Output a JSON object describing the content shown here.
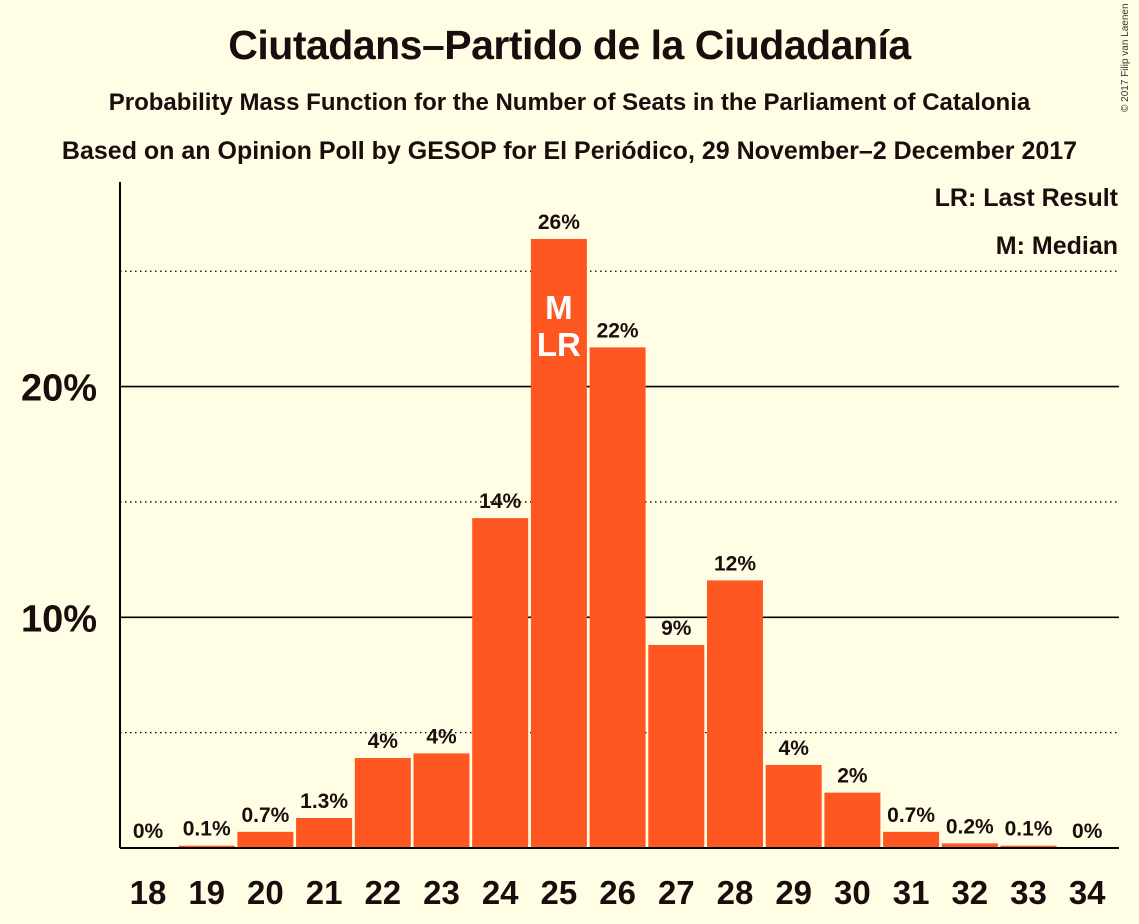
{
  "title": "Ciutadans–Partido de la Ciudadanía",
  "subtitle": "Probability Mass Function for the Number of Seats in the Parliament of Catalonia",
  "subtitle2": "Based on an Opinion Poll by GESOP for El Periódico, 29 November–2 December 2017",
  "copyright": "© 2017 Filip van Laenen",
  "legend": {
    "lr": "LR: Last Result",
    "m": "M: Median"
  },
  "colors": {
    "bar": "#FF5722",
    "background": "#FFFDE3",
    "text": "#1a0d0d"
  },
  "chart_data": {
    "type": "bar",
    "categories": [
      "18",
      "19",
      "20",
      "21",
      "22",
      "23",
      "24",
      "25",
      "26",
      "27",
      "28",
      "29",
      "30",
      "31",
      "32",
      "33",
      "34"
    ],
    "values": [
      0,
      0.1,
      0.7,
      1.3,
      3.9,
      4.1,
      14.3,
      26.4,
      21.7,
      8.8,
      11.6,
      3.6,
      2.4,
      0.7,
      0.2,
      0.1,
      0
    ],
    "data_labels": [
      "0%",
      "0.1%",
      "0.7%",
      "1.3%",
      "4%",
      "4%",
      "14%",
      "26%",
      "22%",
      "9%",
      "12%",
      "4%",
      "2%",
      "0.7%",
      "0.2%",
      "0.1%",
      "0%"
    ],
    "ylim": [
      0,
      28.7
    ],
    "yticks": [
      10,
      20
    ],
    "ytick_labels": [
      "10%",
      "20%"
    ],
    "minor_grid": [
      5,
      15,
      25
    ],
    "median_category": "25",
    "last_result_category": "25",
    "median_marker": "M",
    "last_result_marker": "LR",
    "legend_position": "top-right"
  }
}
